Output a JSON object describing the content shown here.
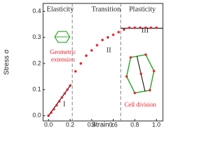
{
  "chart_data": {
    "type": "scatter",
    "xlabel": "Strain ε",
    "ylabel": "Stress σ",
    "xlim": [
      -0.05,
      1.06
    ],
    "ylim": [
      -0.02,
      0.43
    ],
    "xticks": [
      {
        "value": 0,
        "label": "0.0"
      },
      0.2,
      0.4,
      0.6,
      0.8,
      {
        "value": 1,
        "label": "1.0"
      }
    ],
    "yticks": [
      {
        "value": 0,
        "label": "0.0"
      },
      0.1,
      0.2,
      0.3,
      0.4
    ],
    "series": [
      {
        "color": "#e8202a",
        "x": [
          0,
          0.025,
          0.05,
          0.075,
          0.1,
          0.125,
          0.15,
          0.175,
          0.2,
          0.25,
          0.3,
          0.35,
          0.4,
          0.45,
          0.5,
          0.55,
          0.6,
          0.65,
          0.7,
          0.75,
          0.8,
          0.85,
          0.9,
          0.95,
          1.0
        ],
        "values": [
          0,
          0.012,
          0.025,
          0.04,
          0.055,
          0.07,
          0.085,
          0.1,
          0.115,
          0.17,
          0.2,
          0.23,
          0.25,
          0.27,
          0.29,
          0.3,
          0.31,
          0.32,
          0.33,
          0.337,
          0.337,
          0.337,
          0.337,
          0.337,
          0.337
        ]
      }
    ],
    "fit_lines": [
      {
        "x": [
          0,
          0.21
        ],
        "values": [
          0,
          0.12
        ]
      },
      {
        "x": [
          0.67,
          1.06
        ],
        "values": [
          0.335,
          0.335
        ]
      }
    ],
    "vlines": [
      0.22,
      0.67
    ],
    "regions": [
      "Elasticity",
      "Transition",
      "Plasticity"
    ],
    "region_numbers": [
      "I",
      "II",
      "III"
    ],
    "annotations": [
      "Geometric",
      "extension",
      "Cell division"
    ]
  }
}
